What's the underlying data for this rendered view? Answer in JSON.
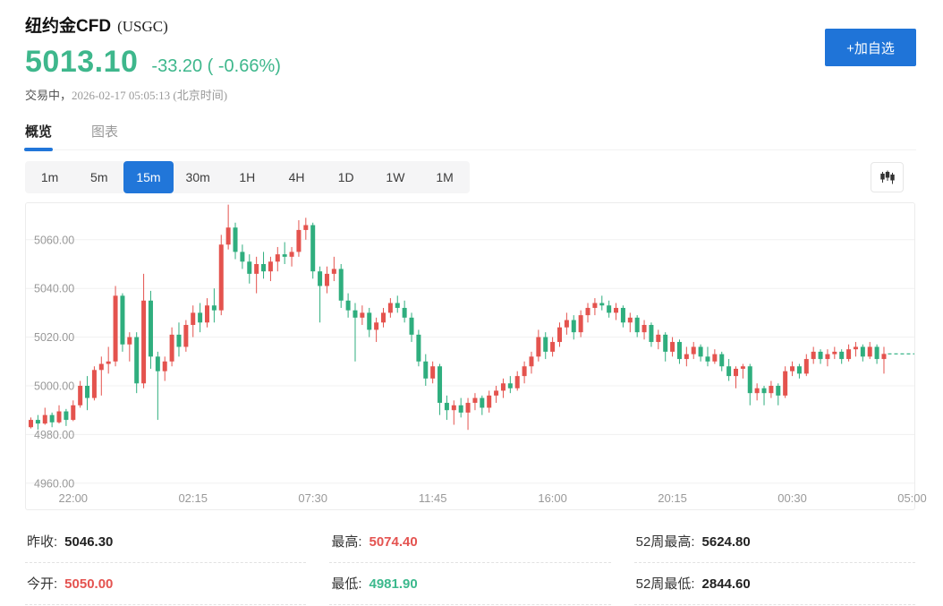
{
  "colors": {
    "accent": "#2176d9",
    "button_blue": "#1f74d8",
    "price_green": "#3eb78c",
    "up_red": "#e4534e",
    "down_green": "#2fae7e",
    "dashed_line_green": "#3db68b",
    "grid_line": "#f0f0f0",
    "axis_text": "#999999"
  },
  "header": {
    "title": "纽约金CFD",
    "symbol": "(USGC)",
    "price": "5013.10",
    "change": "-33.20 ( -0.66%)",
    "status_label": "交易中，",
    "datetime": "2026-02-17 05:05:13 (北京时间)",
    "add_watchlist_label": "+加自选"
  },
  "tabs": [
    {
      "label": "概览",
      "active": true
    },
    {
      "label": "图表",
      "active": false
    }
  ],
  "intervals": [
    {
      "label": "1m",
      "active": false
    },
    {
      "label": "5m",
      "active": false
    },
    {
      "label": "15m",
      "active": true
    },
    {
      "label": "30m",
      "active": false
    },
    {
      "label": "1H",
      "active": false
    },
    {
      "label": "4H",
      "active": false
    },
    {
      "label": "1D",
      "active": false
    },
    {
      "label": "1W",
      "active": false
    },
    {
      "label": "1M",
      "active": false
    }
  ],
  "chart_data": {
    "type": "candlestick",
    "interval": "15m",
    "current_price": 5013.1,
    "y_axis": [
      {
        "value": 5060,
        "label": "5060.00"
      },
      {
        "value": 5040,
        "label": "5040.00"
      },
      {
        "value": 5020,
        "label": "5020.00"
      },
      {
        "value": 5000,
        "label": "5000.00"
      },
      {
        "value": 4980,
        "label": "4980.00"
      },
      {
        "value": 4960,
        "label": "4960.00"
      }
    ],
    "x_labels": [
      {
        "i": 6,
        "label": "22:00"
      },
      {
        "i": 23,
        "label": "02:15"
      },
      {
        "i": 40,
        "label": "07:30"
      },
      {
        "i": 57,
        "label": "11:45"
      },
      {
        "i": 74,
        "label": "16:00"
      },
      {
        "i": 91,
        "label": "20:15"
      },
      {
        "i": 108,
        "label": "00:30"
      },
      {
        "i": 125,
        "label": "05:00"
      }
    ],
    "ylim": [
      4955,
      5075
    ],
    "ohlc": [
      [
        4983,
        4987,
        4982.5,
        4986
      ],
      [
        4986,
        4988,
        4982,
        4984.5
      ],
      [
        4984.5,
        4991,
        4984,
        4988
      ],
      [
        4988,
        4989,
        4983,
        4985
      ],
      [
        4985,
        4992,
        4984.5,
        4989.5
      ],
      [
        4989.5,
        4990.5,
        4983.5,
        4986
      ],
      [
        4986,
        4994,
        4985.5,
        4992
      ],
      [
        4992,
        5002,
        4991,
        5000
      ],
      [
        5000,
        5004,
        4990,
        4995
      ],
      [
        4995,
        5008,
        4994,
        5006.5
      ],
      [
        5006.5,
        5012,
        4996,
        5009
      ],
      [
        5009,
        5016,
        5005,
        5010
      ],
      [
        5010,
        5041,
        5008,
        5037
      ],
      [
        5037,
        5038,
        5014,
        5017
      ],
      [
        5017,
        5022,
        5010,
        5020
      ],
      [
        5020,
        5022,
        4997,
        5001
      ],
      [
        5001,
        5046,
        4999,
        5035
      ],
      [
        5035,
        5039,
        5007,
        5012
      ],
      [
        5012,
        5014,
        4986,
        5006
      ],
      [
        5006,
        5012,
        5002,
        5010
      ],
      [
        5010,
        5024,
        5008,
        5021
      ],
      [
        5021,
        5026,
        5012,
        5016
      ],
      [
        5016,
        5027,
        5014,
        5025
      ],
      [
        5025,
        5033,
        5020,
        5030
      ],
      [
        5030,
        5034,
        5022,
        5026
      ],
      [
        5026,
        5036,
        5024,
        5033
      ],
      [
        5033,
        5040,
        5026,
        5031
      ],
      [
        5031,
        5062,
        5029,
        5058
      ],
      [
        5058,
        5074.4,
        5056,
        5065
      ],
      [
        5065,
        5067,
        5052,
        5055
      ],
      [
        5055,
        5058,
        5048,
        5051
      ],
      [
        5051,
        5054,
        5042,
        5046
      ],
      [
        5046,
        5053,
        5038,
        5050
      ],
      [
        5050,
        5055,
        5044,
        5047
      ],
      [
        5047,
        5053,
        5043,
        5051
      ],
      [
        5051,
        5057,
        5047,
        5054
      ],
      [
        5054,
        5059,
        5050,
        5053
      ],
      [
        5053,
        5057,
        5049,
        5055
      ],
      [
        5055,
        5068,
        5053,
        5064
      ],
      [
        5064,
        5069,
        5060,
        5066
      ],
      [
        5066,
        5067,
        5044,
        5047
      ],
      [
        5047,
        5049,
        5026,
        5041
      ],
      [
        5041,
        5049,
        5038,
        5046
      ],
      [
        5046,
        5053,
        5043,
        5048
      ],
      [
        5048,
        5050,
        5032,
        5035
      ],
      [
        5035,
        5038,
        5028,
        5031
      ],
      [
        5031,
        5034,
        5010,
        5028
      ],
      [
        5028,
        5033,
        5025,
        5030
      ],
      [
        5030,
        5032,
        5020,
        5023
      ],
      [
        5023,
        5028,
        5018,
        5026
      ],
      [
        5026,
        5032,
        5024,
        5030
      ],
      [
        5030,
        5036,
        5028,
        5034
      ],
      [
        5034,
        5037,
        5030,
        5032
      ],
      [
        5032,
        5035,
        5026,
        5028
      ],
      [
        5028,
        5030,
        5018,
        5021
      ],
      [
        5021,
        5023,
        5008,
        5010
      ],
      [
        5010,
        5013,
        5000,
        5003
      ],
      [
        5003,
        5010,
        5001,
        5008
      ],
      [
        5008,
        5009,
        4988,
        4993
      ],
      [
        4993,
        4996,
        4986,
        4990
      ],
      [
        4990,
        4994,
        4984,
        4992
      ],
      [
        4992,
        4995,
        4987,
        4989
      ],
      [
        4989,
        4995,
        4981.9,
        4993
      ],
      [
        4993,
        4997,
        4990,
        4995
      ],
      [
        4995,
        4996,
        4988,
        4991
      ],
      [
        4991,
        4998,
        4989,
        4996
      ],
      [
        4996,
        5000,
        4993,
        4998
      ],
      [
        4998,
        5003,
        4995,
        5001
      ],
      [
        5001,
        5004,
        4997,
        4999
      ],
      [
        4999,
        5006,
        4998,
        5004
      ],
      [
        5004,
        5010,
        5001,
        5008
      ],
      [
        5008,
        5014,
        5005,
        5012
      ],
      [
        5012,
        5023,
        5010,
        5020
      ],
      [
        5020,
        5022,
        5011,
        5014
      ],
      [
        5014,
        5020,
        5012,
        5018
      ],
      [
        5018,
        5026,
        5016,
        5024
      ],
      [
        5024,
        5030,
        5021,
        5027
      ],
      [
        5027,
        5029,
        5019,
        5022
      ],
      [
        5022,
        5031,
        5020,
        5029
      ],
      [
        5029,
        5034,
        5026,
        5032
      ],
      [
        5032,
        5036,
        5029,
        5034
      ],
      [
        5034,
        5037,
        5031,
        5033
      ],
      [
        5033,
        5035,
        5028,
        5030
      ],
      [
        5030,
        5034,
        5027,
        5032
      ],
      [
        5032,
        5033,
        5024,
        5026
      ],
      [
        5026,
        5030,
        5022,
        5028
      ],
      [
        5028,
        5029,
        5020,
        5022
      ],
      [
        5022,
        5027,
        5019,
        5025
      ],
      [
        5025,
        5026,
        5016,
        5018
      ],
      [
        5018,
        5023,
        5015,
        5021
      ],
      [
        5021,
        5022,
        5010,
        5014
      ],
      [
        5014,
        5020,
        5012,
        5018
      ],
      [
        5018,
        5019,
        5009,
        5011
      ],
      [
        5011,
        5016,
        5008,
        5013
      ],
      [
        5013,
        5018,
        5011,
        5016
      ],
      [
        5016,
        5017,
        5010,
        5012
      ],
      [
        5012,
        5016,
        5008,
        5010
      ],
      [
        5010,
        5015,
        5009,
        5013
      ],
      [
        5013,
        5014,
        5006,
        5008
      ],
      [
        5008,
        5011,
        5002,
        5004
      ],
      [
        5004,
        5008,
        4999,
        5007
      ],
      [
        5007,
        5009,
        5003,
        5008
      ],
      [
        5008,
        5009,
        4992,
        4997
      ],
      [
        4997,
        5001,
        4994,
        4999
      ],
      [
        4999,
        5000,
        4992,
        4997
      ],
      [
        4997,
        5002,
        4995,
        5000
      ],
      [
        5000,
        5001,
        4992,
        4996
      ],
      [
        4996,
        5008,
        4995,
        5006
      ],
      [
        5006,
        5010,
        5004,
        5008
      ],
      [
        5008,
        5009,
        5003,
        5005
      ],
      [
        5005,
        5013,
        5004,
        5011
      ],
      [
        5011,
        5016,
        5009,
        5014
      ],
      [
        5014,
        5015,
        5009,
        5011
      ],
      [
        5011,
        5015,
        5008,
        5013
      ],
      [
        5013,
        5016,
        5011,
        5014
      ],
      [
        5014,
        5015,
        5009,
        5011
      ],
      [
        5011,
        5017,
        5010,
        5015
      ],
      [
        5015,
        5018,
        5012,
        5016
      ],
      [
        5016,
        5017,
        5010,
        5012
      ],
      [
        5012,
        5018,
        5011,
        5016
      ],
      [
        5016,
        5017,
        5009,
        5011
      ],
      [
        5011,
        5016,
        5005,
        5013.1
      ]
    ]
  },
  "stats": [
    {
      "label": "昨收:",
      "value": "5046.30",
      "color": "dark"
    },
    {
      "label": "最高:",
      "value": "5074.40",
      "color": "red"
    },
    {
      "label": "52周最高:",
      "value": "5624.80",
      "color": "dark"
    },
    {
      "label": "今开:",
      "value": "5050.00",
      "color": "red"
    },
    {
      "label": "最低:",
      "value": "4981.90",
      "color": "green"
    },
    {
      "label": "52周最低:",
      "value": "2844.60",
      "color": "dark"
    }
  ]
}
